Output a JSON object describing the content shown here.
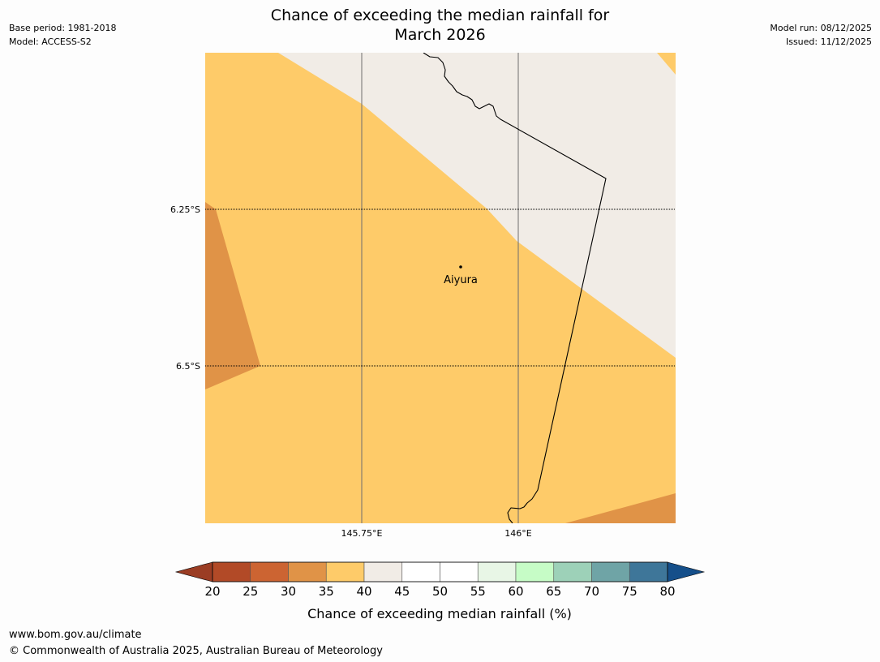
{
  "title": {
    "line1": "Chance of exceeding the median rainfall for",
    "line2": "March 2026"
  },
  "meta_left": {
    "base_period": "Base period: 1981-2018",
    "model": "Model: ACCESS-S2"
  },
  "meta_right": {
    "model_run": "Model run: 08/12/2025",
    "issued": "Issued: 11/12/2025"
  },
  "map": {
    "place": "Aiyura",
    "lon_ticks": [
      "145.75°E",
      "146°E"
    ],
    "lat_ticks": [
      "6.25°S",
      "6.5°S"
    ]
  },
  "colorbar": {
    "label": "Chance of exceeding median rainfall (%)",
    "ticks": [
      "20",
      "25",
      "30",
      "35",
      "40",
      "45",
      "50",
      "55",
      "60",
      "65",
      "70",
      "75",
      "80"
    ],
    "under_color": "#9b3d24",
    "over_color": "#154f8a",
    "bins": [
      {
        "from": 20,
        "to": 25,
        "color": "#b24a27"
      },
      {
        "from": 25,
        "to": 30,
        "color": "#cc6432"
      },
      {
        "from": 30,
        "to": 35,
        "color": "#e09347"
      },
      {
        "from": 35,
        "to": 40,
        "color": "#fecb69"
      },
      {
        "from": 40,
        "to": 45,
        "color": "#f1ece6"
      },
      {
        "from": 45,
        "to": 50,
        "color": "#ffffff"
      },
      {
        "from": 50,
        "to": 55,
        "color": "#ffffff"
      },
      {
        "from": 55,
        "to": 60,
        "color": "#e8f6e6"
      },
      {
        "from": 60,
        "to": 65,
        "color": "#c6fcc6"
      },
      {
        "from": 65,
        "to": 70,
        "color": "#9dd1b8"
      },
      {
        "from": 70,
        "to": 75,
        "color": "#6fa4a6"
      },
      {
        "from": 75,
        "to": 80,
        "color": "#3e7699"
      }
    ]
  },
  "footer": {
    "url": "www.bom.gov.au/climate",
    "copyright": "© Commonwealth of Australia 2025, Australian Bureau of Meteorology"
  }
}
